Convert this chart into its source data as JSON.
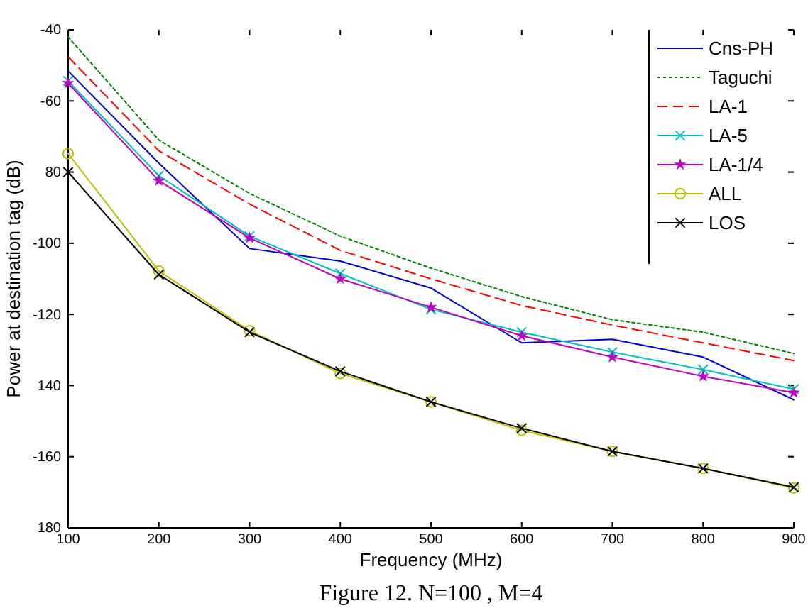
{
  "chart_data": {
    "type": "line",
    "title": "Figure 12. N=100 , M=4",
    "xlabel": "Frequency (MHz)",
    "ylabel": "Power at destination tag (dB)",
    "x": [
      100,
      200,
      300,
      400,
      500,
      600,
      700,
      800,
      900
    ],
    "xlim": [
      100,
      900
    ],
    "xticks": [
      100,
      200,
      300,
      400,
      500,
      600,
      700,
      800,
      900
    ],
    "ylim": [
      -180,
      -40
    ],
    "yticks": [
      {
        "value": -180,
        "label": "180"
      },
      -160,
      {
        "value": -140,
        "label": "140"
      },
      -120,
      -100,
      {
        "value": -80,
        "label": "80"
      },
      -60,
      -40
    ],
    "legend": "top right",
    "grid": false,
    "series": [
      {
        "name": "Cns-PH",
        "color": "#0000cc",
        "line_style": "solid",
        "marker": "none",
        "values": [
          -51.6,
          -77.5,
          -101.5,
          -105,
          -112.6,
          -128,
          -127,
          -132,
          -144
        ]
      },
      {
        "name": "Taguchi",
        "color": "#008000",
        "line_style": "dotted",
        "marker": "none",
        "values": [
          -42,
          -71,
          -86,
          -98,
          -107,
          -115,
          -121.5,
          -125,
          -131
        ]
      },
      {
        "name": "LA-1",
        "color": "#ff0000",
        "line_style": "dashed",
        "marker": "none",
        "values": [
          -47.6,
          -74,
          -89,
          -102,
          -110,
          -117.5,
          -123,
          -128,
          -133
        ]
      },
      {
        "name": "LA-5",
        "color": "#00bfbf",
        "line_style": "solid",
        "marker": "cross",
        "values": [
          -54.4,
          -81,
          -98,
          -108.5,
          -118.6,
          -125,
          -130.6,
          -135.5,
          -141
        ]
      },
      {
        "name": "LA-1/4",
        "color": "#bf00bf",
        "line_style": "solid",
        "marker": "star",
        "values": [
          -55,
          -82.4,
          -98.5,
          -110,
          -118,
          -126,
          -132,
          -137.4,
          -142
        ]
      },
      {
        "name": "ALL",
        "color": "#bfbf00",
        "line_style": "solid",
        "marker": "circle",
        "values": [
          -74.8,
          -107.8,
          -124.6,
          -136.6,
          -144.6,
          -152.6,
          -158.5,
          -163.3,
          -168.8
        ]
      },
      {
        "name": "LOS",
        "color": "#000000",
        "line_style": "solid",
        "marker": "cross",
        "values": [
          -80,
          -108.8,
          -125,
          -136,
          -144.6,
          -152,
          -158.5,
          -163.3,
          -168.6
        ]
      }
    ]
  }
}
